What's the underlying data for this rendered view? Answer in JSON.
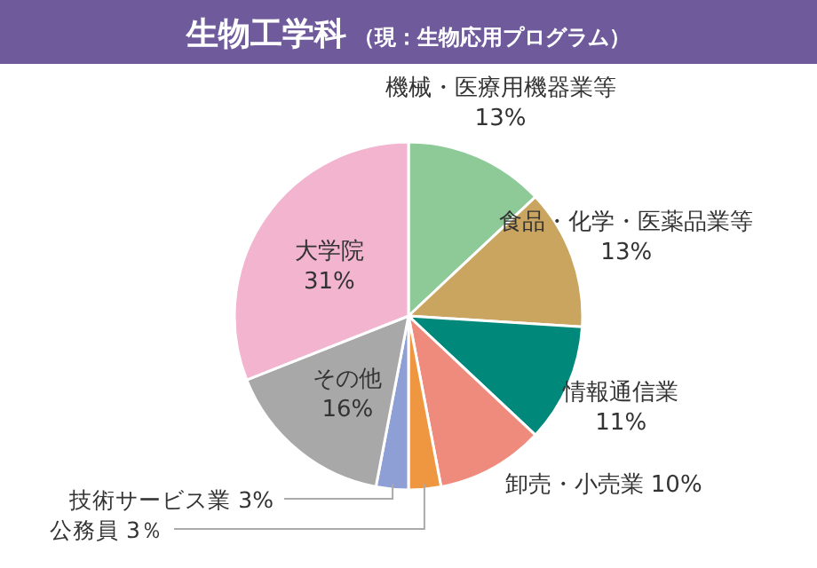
{
  "chart_data": {
    "type": "pie",
    "title": "生物工学科",
    "subtitle": "（現：生物応用プログラム）",
    "categories": [
      "機械・医療用機器業等",
      "食品・化学・医薬品業等",
      "情報通信業",
      "卸売・小売業",
      "公務員",
      "技術サービス業",
      "その他",
      "大学院"
    ],
    "values": [
      13,
      13,
      11,
      10,
      3,
      3,
      16,
      31
    ],
    "colors": [
      "#8dca98",
      "#c9a55f",
      "#00897b",
      "#ef8b7d",
      "#ef9640",
      "#8e9fd6",
      "#a8a8a8",
      "#f2b4cf"
    ],
    "value_labels": [
      "13%",
      "13%",
      "11%",
      "10%",
      "3％",
      "3%",
      "16%",
      "31%"
    ]
  }
}
